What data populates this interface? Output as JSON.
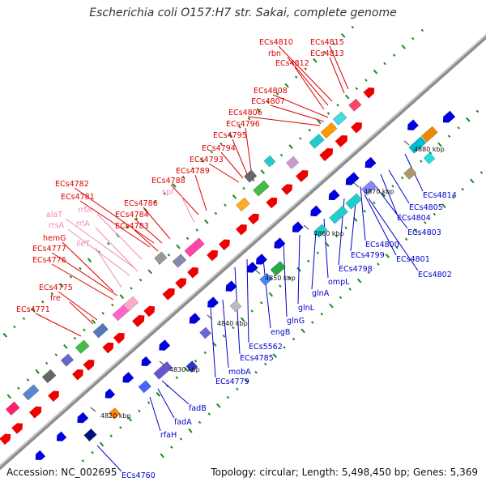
{
  "title": "Escherichia coli O157:H7 str. Sakai, complete genome",
  "footer": {
    "accession": "Accession: NC_002695",
    "topology": "Topology: circular; Length: 5,498,450 bp; Genes: 5,369"
  },
  "colors": {
    "backbone": "#9a9a9a",
    "forward_label": "#dd0000",
    "reverse_label": "#0000cc",
    "rna_label": "#ee88bb",
    "tick": "#1a8a1a",
    "forward_gene": "#ee0000",
    "reverse_gene": "#0000dd",
    "rna_gene": "#ff66cc",
    "other_gene": "#22cccc"
  },
  "tick_labels": [
    {
      "text": "4820 kbp",
      "kbp": 4820
    },
    {
      "text": "4830 kbp",
      "kbp": 4830
    },
    {
      "text": "4840 kbp",
      "kbp": 4840
    },
    {
      "text": "4850 kbp",
      "kbp": 4850
    },
    {
      "text": "4860 kbp",
      "kbp": 4860
    },
    {
      "text": "4870 kbp",
      "kbp": 4870
    },
    {
      "text": "4880 kbp",
      "kbp": 4880
    }
  ],
  "upper_labels": [
    {
      "text": "ECs4815",
      "kind": "forward"
    },
    {
      "text": "ECs4813",
      "kind": "forward"
    },
    {
      "text": "ECs4810",
      "kind": "forward"
    },
    {
      "text": "rbn",
      "kind": "forward"
    },
    {
      "text": "ECs4812",
      "kind": "forward"
    },
    {
      "text": "ECs4808",
      "kind": "forward"
    },
    {
      "text": "ECs4807",
      "kind": "forward"
    },
    {
      "text": "ECs4806",
      "kind": "forward"
    },
    {
      "text": "ECs4796",
      "kind": "forward"
    },
    {
      "text": "ECs4795",
      "kind": "forward"
    },
    {
      "text": "ECs4794",
      "kind": "forward"
    },
    {
      "text": "ECs4793",
      "kind": "forward"
    },
    {
      "text": "ECs4789",
      "kind": "forward"
    },
    {
      "text": "ECs4788",
      "kind": "forward"
    },
    {
      "text": "spf",
      "kind": "rna"
    },
    {
      "text": "ECs4782",
      "kind": "forward"
    },
    {
      "text": "ECs4781",
      "kind": "forward"
    },
    {
      "text": "ECs4786",
      "kind": "forward"
    },
    {
      "text": "rrfA",
      "kind": "rna"
    },
    {
      "text": "ECs4784",
      "kind": "forward"
    },
    {
      "text": "alaT",
      "kind": "rna"
    },
    {
      "text": "rrlA",
      "kind": "rna"
    },
    {
      "text": "rrsA",
      "kind": "rna"
    },
    {
      "text": "ECs4783",
      "kind": "forward"
    },
    {
      "text": "hemG",
      "kind": "forward"
    },
    {
      "text": "ileT",
      "kind": "rna"
    },
    {
      "text": "ECs4777",
      "kind": "forward"
    },
    {
      "text": "ECs4776",
      "kind": "forward"
    },
    {
      "text": "ECs4775",
      "kind": "forward"
    },
    {
      "text": "fre",
      "kind": "forward"
    },
    {
      "text": "ECs4771",
      "kind": "forward"
    }
  ],
  "lower_labels": [
    {
      "text": "ECs4814"
    },
    {
      "text": "ECs4805"
    },
    {
      "text": "ECs4804"
    },
    {
      "text": "ECs4803"
    },
    {
      "text": "ECs4800"
    },
    {
      "text": "ECs4799"
    },
    {
      "text": "ECs4801"
    },
    {
      "text": "ECs4798"
    },
    {
      "text": "ECs4802"
    },
    {
      "text": "ompL"
    },
    {
      "text": "glnA"
    },
    {
      "text": "glnL"
    },
    {
      "text": "glnG"
    },
    {
      "text": "engB"
    },
    {
      "text": "ECs5562"
    },
    {
      "text": "ECs4785"
    },
    {
      "text": "ECs4779"
    },
    {
      "text": "mobA"
    },
    {
      "text": "fadB"
    },
    {
      "text": "fadA"
    },
    {
      "text": "rfaH"
    },
    {
      "text": "ECs4760"
    }
  ]
}
